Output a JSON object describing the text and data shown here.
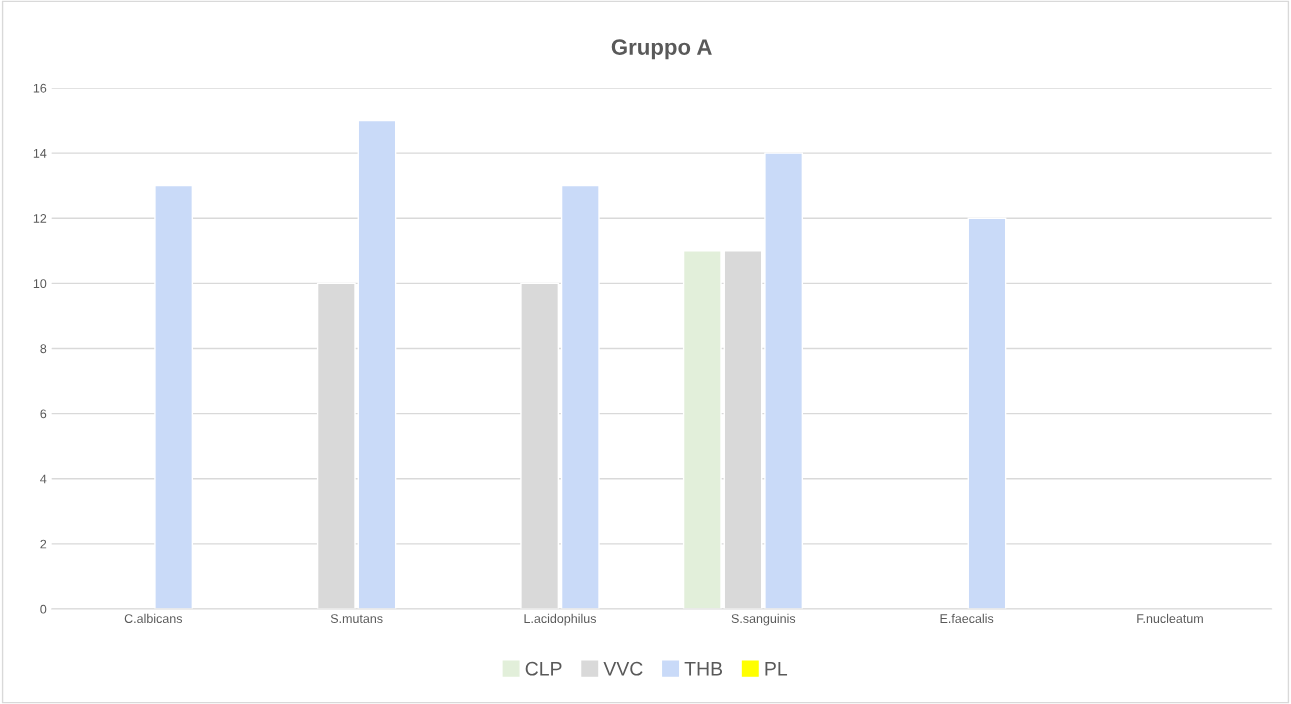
{
  "chart_data": {
    "type": "bar",
    "title": "Gruppo A",
    "categories": [
      "C.albicans",
      "S.mutans",
      "L.acidophilus",
      "S.sanguinis",
      "E.faecalis",
      "F.nucleatum"
    ],
    "series": [
      {
        "name": "CLP",
        "color": "#e2efda",
        "values": [
          null,
          null,
          null,
          11,
          null,
          null
        ]
      },
      {
        "name": "VVC",
        "color": "#d9d9d9",
        "values": [
          null,
          10,
          10,
          11,
          null,
          null
        ]
      },
      {
        "name": "THB",
        "color": "#c9daf8",
        "values": [
          13,
          15,
          13,
          14,
          12,
          null
        ]
      },
      {
        "name": "PL",
        "color": "#ffff00",
        "values": [
          null,
          null,
          null,
          null,
          null,
          null
        ]
      }
    ],
    "ylim": [
      0,
      16
    ],
    "yticks": [
      0,
      2,
      4,
      6,
      8,
      10,
      12,
      14,
      16
    ],
    "grid": "y",
    "legend": "bottom"
  }
}
